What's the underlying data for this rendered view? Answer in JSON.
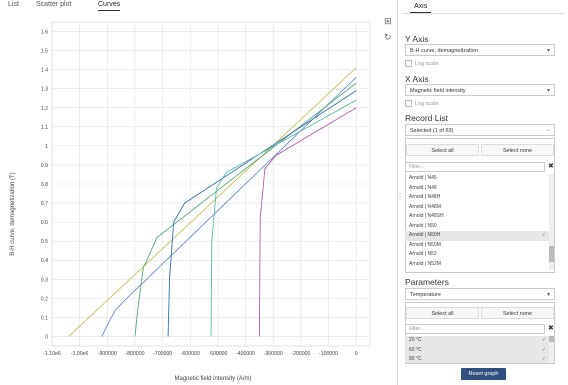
{
  "tabs": [
    {
      "label": "List"
    },
    {
      "label": "Scatter plot"
    },
    {
      "label": "Curves"
    }
  ],
  "toolbar": {
    "zoom_icon": "zoom-icon",
    "reset_icon": "refresh-icon"
  },
  "panel": {
    "tab_label": "Axis",
    "y_axis": {
      "title": "Y Axis",
      "value": "B-H curve, demagnetization",
      "log_label": "Log scale"
    },
    "x_axis": {
      "title": "X Axis",
      "value": "Magnetic field intensity",
      "log_label": "Log scale"
    },
    "record_list": {
      "title": "Record List",
      "selected": "Selected (1 of 63)",
      "select_all": "Select all",
      "select_none": "Select none",
      "filter_placeholder": "Filter...",
      "items": [
        {
          "label": "Arnold | N45",
          "selected": false
        },
        {
          "label": "Arnold | N48",
          "selected": false
        },
        {
          "label": "Arnold | N48H",
          "selected": false
        },
        {
          "label": "Arnold | N48M",
          "selected": false
        },
        {
          "label": "Arnold | N48SH",
          "selected": false
        },
        {
          "label": "Arnold | N50",
          "selected": false
        },
        {
          "label": "Arnold | N50H",
          "selected": true
        },
        {
          "label": "Arnold | N50M",
          "selected": false
        },
        {
          "label": "Arnold | N52",
          "selected": false
        },
        {
          "label": "Arnold | N52M",
          "selected": false
        },
        {
          "label": "Arnold | N55",
          "selected": false
        }
      ]
    },
    "parameters": {
      "title": "Parameters",
      "value": "Temperature",
      "select_all": "Select all",
      "select_none": "Select none",
      "filter_placeholder": "Filter...",
      "items": [
        {
          "label": "20 °C",
          "selected": true
        },
        {
          "label": "60 °C",
          "selected": true
        },
        {
          "label": "80 °C",
          "selected": true
        }
      ]
    },
    "reset_label": "Reset graph"
  },
  "chart_data": {
    "type": "line",
    "title": "",
    "xlabel": "Magnetic field intensity (A/m)",
    "ylabel": "B-H curve, demagnetization (T)",
    "xlim": [
      -1100000,
      50000
    ],
    "ylim": [
      -0.05,
      1.65
    ],
    "grid": true,
    "xticks": [
      -1100000,
      -1000000,
      -900000,
      -800000,
      -700000,
      -600000,
      -500000,
      -400000,
      -300000,
      -200000,
      -100000,
      0
    ],
    "xtick_labels": [
      "-1.10e6",
      "-1.00e6",
      "-900000",
      "-800000",
      "-700000",
      "-600000",
      "-500000",
      "-400000",
      "-300000",
      "-200000",
      "-100000",
      "0"
    ],
    "yticks": [
      0,
      0.1,
      0.2,
      0.3,
      0.4,
      0.5,
      0.6,
      0.7,
      0.8,
      0.9,
      1,
      1.1,
      1.2,
      1.3,
      1.4,
      1.5,
      1.6
    ],
    "ytick_labels": [
      "0",
      "0.1",
      "0.2",
      "0.3",
      "0.4",
      "0.5",
      "0.6",
      "0.7",
      "0.8",
      "0.9",
      "1",
      "1.1",
      "1.2",
      "1.3",
      "1.4",
      "1.5",
      "1.6"
    ],
    "series": [
      {
        "color": "#c8c060",
        "x": [
          -1040000,
          0
        ],
        "y": [
          0,
          1.41
        ]
      },
      {
        "color": "#6a8fc8",
        "x": [
          -920000,
          -900000,
          -870000,
          -830000,
          0
        ],
        "y": [
          0,
          0.06,
          0.14,
          0.2,
          1.36
        ]
      },
      {
        "color": "#58a878",
        "x": [
          -800000,
          -790000,
          -770000,
          -720000,
          0
        ],
        "y": [
          0,
          0.14,
          0.36,
          0.52,
          1.33
        ]
      },
      {
        "color": "#3a6fa8",
        "x": [
          -680000,
          -675000,
          -660000,
          -620000,
          0
        ],
        "y": [
          0,
          0.3,
          0.6,
          0.7,
          1.29
        ]
      },
      {
        "color": "#5ab8a8",
        "x": [
          -525000,
          -522000,
          -505000,
          -470000,
          0
        ],
        "y": [
          0,
          0.5,
          0.78,
          0.86,
          1.24
        ]
      },
      {
        "color": "#b060b0",
        "x": [
          -350000,
          -347000,
          -330000,
          -290000,
          0
        ],
        "y": [
          0,
          0.62,
          0.88,
          0.95,
          1.2
        ]
      }
    ]
  }
}
